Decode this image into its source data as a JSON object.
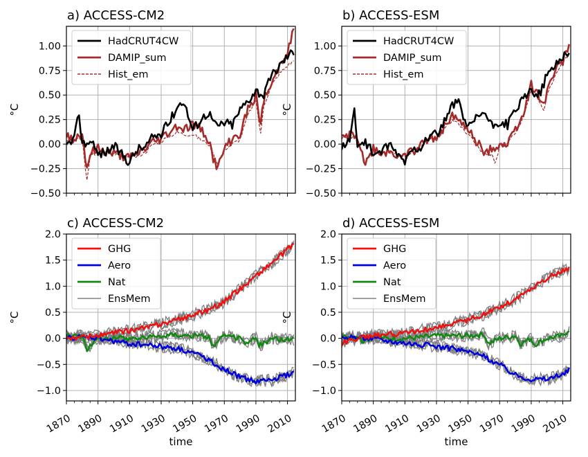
{
  "chart_data": [
    {
      "type": "line",
      "title": "a) ACCESS-CM2",
      "xlabel": "",
      "ylabel": "°C",
      "xlim": [
        1870,
        2015
      ],
      "ylim": [
        -0.5,
        1.2
      ],
      "yticks": [
        "−0.50",
        "−0.25",
        "0.00",
        "0.25",
        "0.50",
        "0.75",
        "1.00"
      ],
      "ytick_values": [
        -0.5,
        -0.25,
        0.0,
        0.25,
        0.5,
        0.75,
        1.0
      ],
      "xticks": [
        "",
        "",
        "",
        "",
        "",
        "",
        "",
        ""
      ],
      "xtick_values": [
        1870,
        1890,
        1910,
        1930,
        1950,
        1970,
        1990,
        2010
      ],
      "grid": true,
      "legend_position": "top-left",
      "colors": {
        "HadCRUT4CW": "#000000",
        "DAMIP_sum": "#a52a2a",
        "Hist_em": "#a52a2a"
      },
      "series": [
        {
          "name": "HadCRUT4CW",
          "style": "solid",
          "x": [
            1870,
            1875,
            1878,
            1880,
            1885,
            1890,
            1895,
            1900,
            1905,
            1910,
            1915,
            1920,
            1925,
            1930,
            1935,
            1940,
            1944,
            1947,
            1950,
            1955,
            1960,
            1965,
            1970,
            1975,
            1980,
            1985,
            1990,
            1995,
            2000,
            2005,
            2010,
            2014
          ],
          "y": [
            -0.02,
            0.05,
            0.33,
            0.0,
            0.03,
            -0.1,
            -0.08,
            -0.02,
            -0.1,
            -0.18,
            -0.05,
            -0.03,
            0.08,
            0.1,
            0.22,
            0.38,
            0.45,
            0.3,
            0.15,
            0.25,
            0.33,
            0.18,
            0.22,
            0.2,
            0.35,
            0.45,
            0.55,
            0.5,
            0.7,
            0.8,
            0.9,
            0.95
          ]
        },
        {
          "name": "DAMIP_sum",
          "style": "solid",
          "x": [
            1870,
            1875,
            1880,
            1883,
            1885,
            1890,
            1895,
            1900,
            1905,
            1910,
            1915,
            1920,
            1925,
            1930,
            1935,
            1940,
            1945,
            1950,
            1955,
            1960,
            1963,
            1966,
            1970,
            1975,
            1980,
            1985,
            1990,
            1993,
            1995,
            2000,
            2005,
            2010,
            2014
          ],
          "y": [
            0.08,
            0.05,
            0.1,
            -0.25,
            -0.1,
            -0.05,
            -0.08,
            -0.1,
            -0.12,
            -0.15,
            -0.1,
            -0.05,
            0.02,
            0.05,
            0.12,
            0.18,
            0.15,
            0.2,
            0.15,
            0.05,
            -0.15,
            -0.25,
            -0.05,
            0.05,
            0.1,
            0.35,
            0.5,
            0.2,
            0.45,
            0.6,
            0.8,
            0.95,
            1.2
          ]
        },
        {
          "name": "Hist_em",
          "style": "dashed",
          "x": [
            1870,
            1875,
            1880,
            1883,
            1885,
            1890,
            1895,
            1900,
            1905,
            1910,
            1915,
            1920,
            1925,
            1930,
            1935,
            1940,
            1945,
            1950,
            1955,
            1960,
            1963,
            1966,
            1970,
            1975,
            1980,
            1985,
            1990,
            1993,
            1995,
            2000,
            2005,
            2010,
            2014
          ],
          "y": [
            0.05,
            0.05,
            0.05,
            -0.38,
            -0.12,
            -0.08,
            -0.08,
            -0.1,
            -0.12,
            -0.15,
            -0.12,
            -0.08,
            0.0,
            0.03,
            0.08,
            0.12,
            0.1,
            0.1,
            0.05,
            0.0,
            -0.1,
            -0.2,
            -0.05,
            0.0,
            0.05,
            0.3,
            0.45,
            0.1,
            0.4,
            0.6,
            0.72,
            0.8,
            0.85
          ]
        }
      ]
    },
    {
      "type": "line",
      "title": "b) ACCESS-ESM",
      "xlabel": "",
      "ylabel": "°C",
      "xlim": [
        1870,
        2015
      ],
      "ylim": [
        -0.5,
        1.2
      ],
      "yticks": [
        "−0.50",
        "−0.25",
        "0.00",
        "0.25",
        "0.50",
        "0.75",
        "1.00"
      ],
      "ytick_values": [
        -0.5,
        -0.25,
        0.0,
        0.25,
        0.5,
        0.75,
        1.0
      ],
      "xticks": [
        "",
        "",
        "",
        "",
        "",
        "",
        "",
        ""
      ],
      "xtick_values": [
        1870,
        1890,
        1910,
        1930,
        1950,
        1970,
        1990,
        2010
      ],
      "grid": true,
      "legend_position": "top-left",
      "colors": {
        "HadCRUT4CW": "#000000",
        "DAMIP_sum": "#a52a2a",
        "Hist_em": "#a52a2a"
      },
      "series": [
        {
          "name": "HadCRUT4CW",
          "style": "solid",
          "x": [
            1870,
            1875,
            1878,
            1880,
            1885,
            1890,
            1895,
            1900,
            1905,
            1910,
            1915,
            1920,
            1925,
            1930,
            1935,
            1940,
            1944,
            1947,
            1950,
            1955,
            1960,
            1965,
            1970,
            1975,
            1980,
            1985,
            1990,
            1995,
            2000,
            2005,
            2010,
            2014
          ],
          "y": [
            -0.02,
            0.05,
            0.33,
            0.0,
            0.03,
            -0.1,
            -0.08,
            -0.02,
            -0.1,
            -0.18,
            -0.05,
            -0.03,
            0.08,
            0.1,
            0.22,
            0.38,
            0.45,
            0.3,
            0.15,
            0.25,
            0.33,
            0.18,
            0.22,
            0.2,
            0.35,
            0.45,
            0.55,
            0.5,
            0.7,
            0.8,
            0.9,
            0.95
          ]
        },
        {
          "name": "DAMIP_sum",
          "style": "solid",
          "x": [
            1870,
            1875,
            1880,
            1885,
            1890,
            1895,
            1900,
            1905,
            1910,
            1915,
            1920,
            1925,
            1930,
            1935,
            1940,
            1945,
            1950,
            1955,
            1960,
            1965,
            1970,
            1975,
            1980,
            1985,
            1990,
            1995,
            1998,
            2000,
            2005,
            2010,
            2014
          ],
          "y": [
            0.05,
            0.1,
            0.08,
            -0.22,
            -0.05,
            -0.1,
            -0.08,
            -0.12,
            -0.1,
            -0.08,
            -0.02,
            0.05,
            0.08,
            0.18,
            0.3,
            0.2,
            0.15,
            0.05,
            -0.1,
            -0.05,
            0.0,
            0.0,
            0.15,
            0.3,
            0.6,
            0.5,
            0.4,
            0.55,
            0.75,
            0.85,
            1.02
          ]
        },
        {
          "name": "Hist_em",
          "style": "dashed",
          "x": [
            1870,
            1875,
            1880,
            1885,
            1890,
            1895,
            1900,
            1905,
            1910,
            1915,
            1920,
            1925,
            1930,
            1935,
            1940,
            1945,
            1950,
            1955,
            1960,
            1965,
            1967,
            1970,
            1975,
            1980,
            1985,
            1990,
            1995,
            1998,
            2000,
            2005,
            2010,
            2014
          ],
          "y": [
            0.05,
            0.08,
            0.05,
            -0.2,
            -0.05,
            -0.08,
            -0.08,
            -0.1,
            -0.1,
            -0.08,
            -0.03,
            0.05,
            0.05,
            0.15,
            0.25,
            0.18,
            0.1,
            0.0,
            -0.1,
            -0.1,
            -0.2,
            -0.02,
            0.0,
            0.12,
            0.28,
            0.55,
            0.45,
            0.35,
            0.5,
            0.7,
            0.82,
            0.92
          ]
        }
      ]
    },
    {
      "type": "line",
      "title": "c) ACCESS-CM2",
      "xlabel": "time",
      "ylabel": "°C",
      "xlim": [
        1870,
        2015
      ],
      "ylim": [
        -1.2,
        2.0
      ],
      "yticks": [
        "−1.0",
        "−0.5",
        "0.0",
        "0.5",
        "1.0",
        "1.5",
        "2.0"
      ],
      "ytick_values": [
        -1.0,
        -0.5,
        0.0,
        0.5,
        1.0,
        1.5,
        2.0
      ],
      "xticks": [
        "1870",
        "1890",
        "1910",
        "1930",
        "1950",
        "1970",
        "1990",
        "2010"
      ],
      "xtick_values": [
        1870,
        1890,
        1910,
        1930,
        1950,
        1970,
        1990,
        2010
      ],
      "grid": true,
      "legend_position": "top-left",
      "colors": {
        "GHG": "#ee1111",
        "Aero": "#0000dd",
        "Nat": "#118811",
        "EnsMem": "#808080"
      },
      "series": [
        {
          "name": "GHG",
          "style": "solid",
          "x": [
            1870,
            1880,
            1890,
            1900,
            1910,
            1920,
            1930,
            1940,
            1950,
            1960,
            1970,
            1980,
            1990,
            2000,
            2010,
            2014
          ],
          "y": [
            0.0,
            0.02,
            0.05,
            0.1,
            0.15,
            0.2,
            0.28,
            0.35,
            0.45,
            0.55,
            0.7,
            0.95,
            1.2,
            1.45,
            1.7,
            1.82
          ]
        },
        {
          "name": "Aero",
          "style": "solid",
          "x": [
            1870,
            1880,
            1890,
            1900,
            1910,
            1920,
            1930,
            1940,
            1950,
            1960,
            1970,
            1980,
            1990,
            2000,
            2010,
            2014
          ],
          "y": [
            0.0,
            0.02,
            0.0,
            -0.05,
            -0.1,
            -0.12,
            -0.15,
            -0.2,
            -0.28,
            -0.4,
            -0.6,
            -0.75,
            -0.82,
            -0.8,
            -0.7,
            -0.65
          ]
        },
        {
          "name": "Nat",
          "style": "solid",
          "x": [
            1870,
            1880,
            1883,
            1890,
            1900,
            1910,
            1920,
            1930,
            1940,
            1950,
            1960,
            1963,
            1970,
            1980,
            1983,
            1990,
            1992,
            2000,
            2010,
            2014
          ],
          "y": [
            0.05,
            0.05,
            -0.2,
            0.0,
            0.02,
            0.0,
            0.02,
            0.05,
            0.08,
            0.05,
            0.03,
            -0.15,
            0.05,
            0.0,
            -0.12,
            0.02,
            -0.15,
            0.0,
            -0.02,
            -0.02
          ]
        },
        {
          "name": "EnsMem",
          "style": "solid",
          "x": [],
          "y": []
        }
      ]
    },
    {
      "type": "line",
      "title": "d) ACCESS-ESM",
      "xlabel": "time",
      "ylabel": "°C",
      "xlim": [
        1870,
        2015
      ],
      "ylim": [
        -1.2,
        2.0
      ],
      "yticks": [
        "−1.0",
        "−0.5",
        "0.0",
        "0.5",
        "1.0",
        "1.5",
        "2.0"
      ],
      "ytick_values": [
        -1.0,
        -0.5,
        0.0,
        0.5,
        1.0,
        1.5,
        2.0
      ],
      "xticks": [
        "1870",
        "1890",
        "1910",
        "1930",
        "1950",
        "1970",
        "1990",
        "2010"
      ],
      "xtick_values": [
        1870,
        1890,
        1910,
        1930,
        1950,
        1970,
        1990,
        2010
      ],
      "grid": true,
      "legend_position": "top-left",
      "colors": {
        "GHG": "#ee1111",
        "Aero": "#0000dd",
        "Nat": "#118811",
        "EnsMem": "#808080"
      },
      "series": [
        {
          "name": "GHG",
          "style": "solid",
          "x": [
            1870,
            1880,
            1890,
            1900,
            1910,
            1920,
            1930,
            1940,
            1950,
            1960,
            1970,
            1980,
            1990,
            2000,
            2010,
            2014
          ],
          "y": [
            -0.1,
            0.0,
            0.05,
            0.08,
            0.1,
            0.15,
            0.2,
            0.28,
            0.35,
            0.45,
            0.6,
            0.75,
            0.95,
            1.15,
            1.3,
            1.35
          ]
        },
        {
          "name": "Aero",
          "style": "solid",
          "x": [
            1870,
            1880,
            1890,
            1900,
            1910,
            1920,
            1930,
            1940,
            1950,
            1960,
            1970,
            1980,
            1990,
            2000,
            2010,
            2014
          ],
          "y": [
            0.0,
            0.02,
            0.0,
            -0.05,
            -0.08,
            -0.12,
            -0.15,
            -0.2,
            -0.25,
            -0.35,
            -0.5,
            -0.7,
            -0.78,
            -0.78,
            -0.7,
            -0.6
          ]
        },
        {
          "name": "Nat",
          "style": "solid",
          "x": [
            1870,
            1880,
            1883,
            1890,
            1900,
            1910,
            1920,
            1930,
            1940,
            1950,
            1960,
            1963,
            1970,
            1980,
            1983,
            1990,
            1992,
            2000,
            2010,
            2014
          ],
          "y": [
            0.02,
            0.05,
            -0.05,
            0.02,
            0.0,
            0.0,
            0.02,
            0.05,
            0.05,
            0.05,
            0.08,
            -0.1,
            0.0,
            0.05,
            -0.1,
            0.0,
            -0.12,
            0.0,
            0.05,
            0.18
          ]
        },
        {
          "name": "EnsMem",
          "style": "solid",
          "x": [],
          "y": []
        }
      ]
    }
  ]
}
